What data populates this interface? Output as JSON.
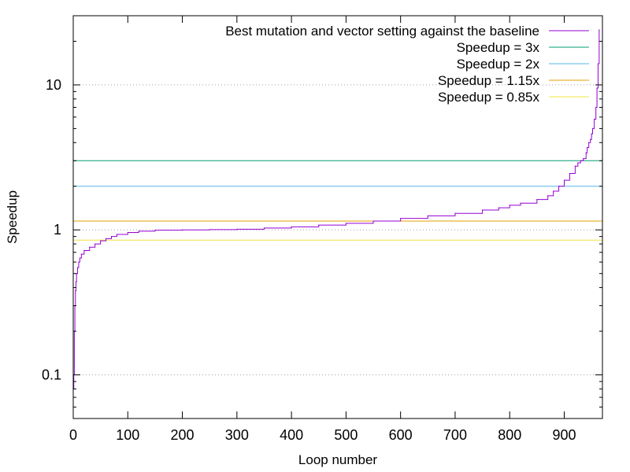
{
  "chart_data": {
    "type": "line",
    "title": "",
    "xlabel": "Loop number",
    "ylabel": "Speedup",
    "xlim": [
      0,
      970
    ],
    "ylim": [
      0.05,
      30
    ],
    "yscale": "log",
    "grid": "dotted horizontal lines at y = 0.1, 1, 10",
    "legend_position": "top-right",
    "x_ticks": [
      0,
      100,
      200,
      300,
      400,
      500,
      600,
      700,
      800,
      900
    ],
    "x_tick_labels": [
      "0",
      "100",
      "200",
      "300",
      "400",
      "500",
      "600",
      "700",
      "800",
      "900"
    ],
    "y_ticks": [
      0.1,
      1,
      10
    ],
    "y_tick_labels": [
      "0.1",
      "1",
      "10"
    ],
    "series": [
      {
        "name": "Best mutation and vector setting against the baseline",
        "color": "#9400d3",
        "x": [
          0,
          1,
          2,
          3,
          4,
          5,
          6,
          8,
          10,
          12,
          15,
          20,
          30,
          40,
          50,
          60,
          70,
          80,
          100,
          120,
          150,
          200,
          250,
          300,
          350,
          400,
          450,
          500,
          550,
          600,
          650,
          700,
          750,
          780,
          800,
          820,
          850,
          870,
          880,
          890,
          900,
          910,
          920,
          925,
          930,
          935,
          940,
          942,
          945,
          948,
          950,
          952,
          955,
          958,
          960,
          962,
          964
        ],
        "y": [
          0.08,
          0.1,
          0.2,
          0.3,
          0.38,
          0.44,
          0.5,
          0.55,
          0.6,
          0.64,
          0.68,
          0.72,
          0.76,
          0.8,
          0.84,
          0.87,
          0.9,
          0.93,
          0.96,
          0.98,
          0.995,
          1.0,
          1.005,
          1.01,
          1.03,
          1.05,
          1.08,
          1.11,
          1.15,
          1.2,
          1.25,
          1.3,
          1.37,
          1.42,
          1.48,
          1.53,
          1.62,
          1.72,
          1.85,
          2.0,
          2.2,
          2.45,
          2.75,
          2.9,
          3.0,
          3.1,
          3.4,
          3.7,
          4.0,
          4.2,
          4.6,
          5.0,
          5.8,
          7.0,
          9.5,
          14,
          24
        ]
      },
      {
        "name": "Speedup = 3x",
        "color": "#009e73",
        "constant": 3
      },
      {
        "name": "Speedup = 2x",
        "color": "#56b4e9",
        "constant": 2
      },
      {
        "name": "Speedup = 1.15x",
        "color": "#e69f00",
        "constant": 1.15
      },
      {
        "name": "Speedup = 0.85x",
        "color": "#f0e442",
        "constant": 0.85
      }
    ]
  }
}
